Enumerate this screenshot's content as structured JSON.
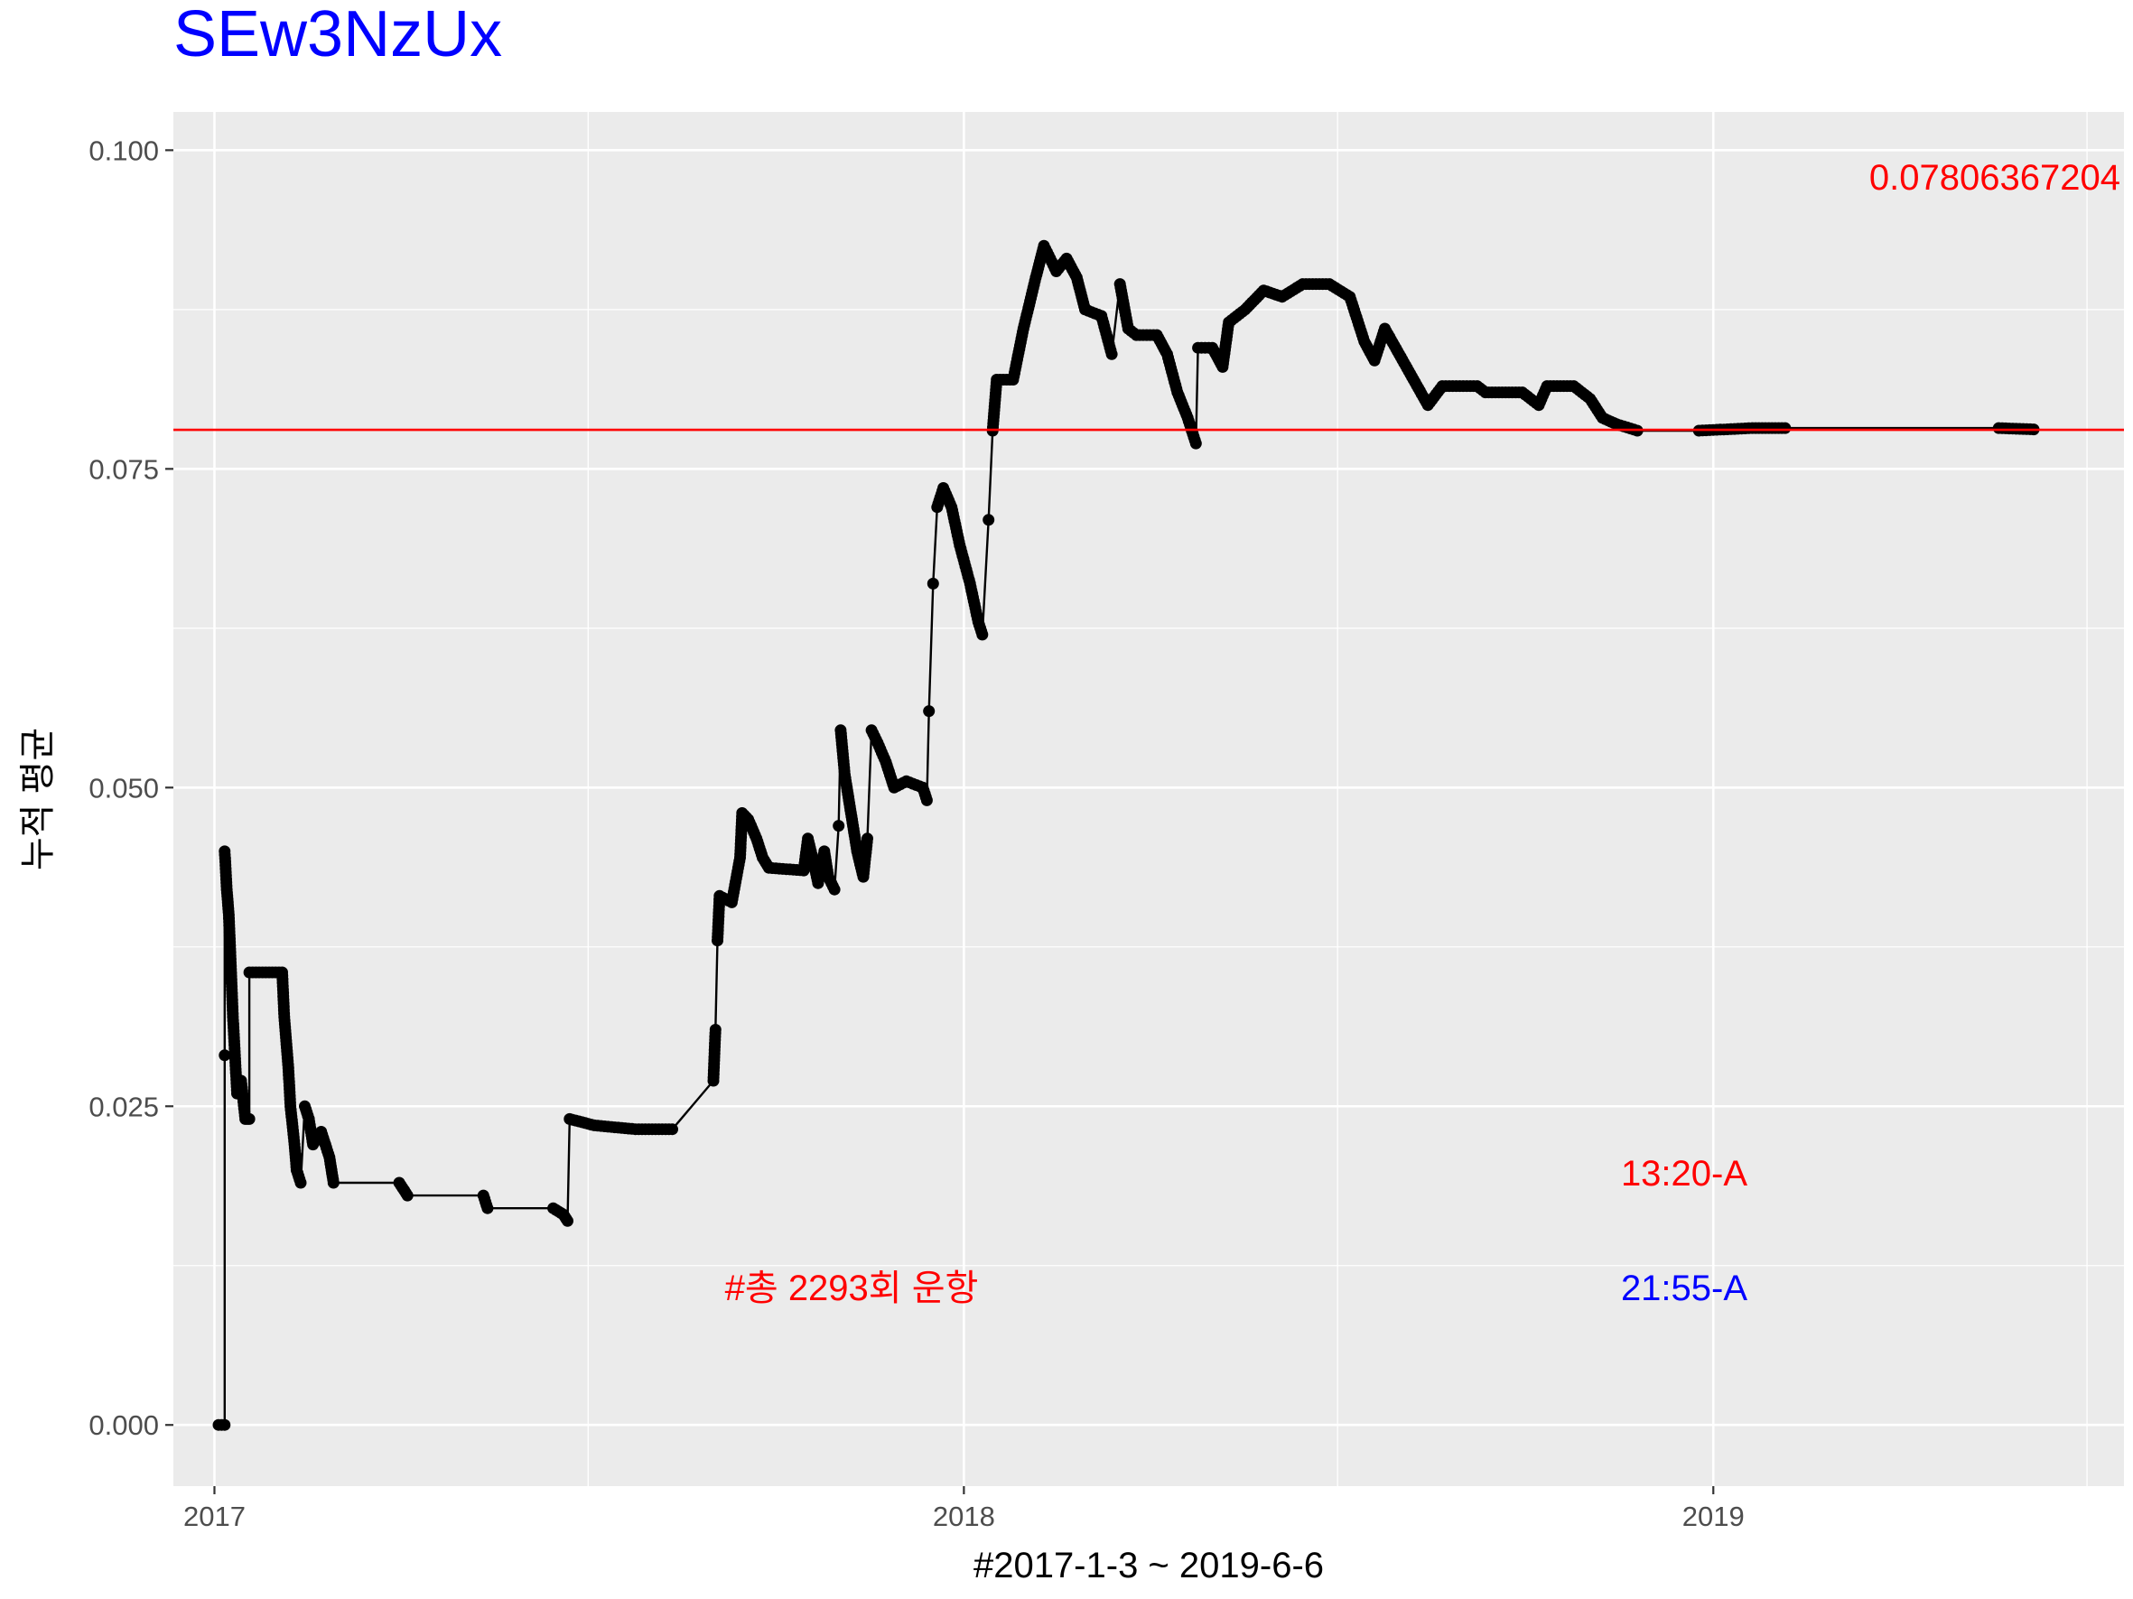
{
  "chart_data": {
    "type": "line",
    "title": "SEw3NzUx",
    "xlabel": "#2017-1-3 ~ 2019-6-6",
    "ylabel": "누적 평균",
    "x_ticks": [
      "2017",
      "2018",
      "2019"
    ],
    "y_ticks": [
      "0.000",
      "0.025",
      "0.050",
      "0.075",
      "0.100"
    ],
    "xlim": [
      "2016-12-12",
      "2019-07-20"
    ],
    "ylim": [
      -0.0048,
      0.103
    ],
    "grid": true,
    "mean_line": {
      "value": 0.07806367204,
      "label": "0.07806367204",
      "color": "#ff0000"
    },
    "annotations": [
      {
        "text": "#총 2293회 운항",
        "color": "#ff0000"
      },
      {
        "text": "13:20-A",
        "color": "#ff0000"
      },
      {
        "text": "21:55-A",
        "color": "#0000ff"
      }
    ],
    "colors": {
      "title": "#0000ff",
      "panel": "#ebebeb",
      "series": "#000000"
    },
    "series": [
      {
        "points": [
          [
            "2017-01-03",
            0.0
          ],
          [
            "2017-01-06",
            0.0
          ],
          [
            "2017-01-06",
            0.029
          ],
          [
            "2017-01-06",
            0.045
          ],
          [
            "2017-01-07",
            0.042
          ],
          [
            "2017-01-08",
            0.04
          ],
          [
            "2017-01-09",
            0.036
          ],
          [
            "2017-01-10",
            0.032
          ],
          [
            "2017-01-11",
            0.029
          ],
          [
            "2017-01-12",
            0.026
          ],
          [
            "2017-01-14",
            0.027
          ],
          [
            "2017-01-16",
            0.024
          ],
          [
            "2017-01-18",
            0.024
          ],
          [
            "2017-01-18",
            0.0355
          ],
          [
            "2017-02-03",
            0.0355
          ],
          [
            "2017-02-04",
            0.032
          ],
          [
            "2017-02-06",
            0.028
          ],
          [
            "2017-02-07",
            0.025
          ],
          [
            "2017-02-09",
            0.022
          ],
          [
            "2017-02-10",
            0.02
          ],
          [
            "2017-02-12",
            0.019
          ],
          [
            "2017-02-14",
            0.025
          ],
          [
            "2017-02-16",
            0.024
          ],
          [
            "2017-02-18",
            0.022
          ],
          [
            "2017-02-22",
            0.023
          ],
          [
            "2017-02-26",
            0.021
          ],
          [
            "2017-02-28",
            0.019
          ],
          [
            "2017-04-01",
            0.019
          ],
          [
            "2017-04-05",
            0.018
          ],
          [
            "2017-05-12",
            0.018
          ],
          [
            "2017-05-14",
            0.017
          ],
          [
            "2017-06-15",
            0.017
          ],
          [
            "2017-06-20",
            0.0165
          ],
          [
            "2017-06-22",
            0.016
          ],
          [
            "2017-06-23",
            0.024
          ],
          [
            "2017-07-05",
            0.0235
          ],
          [
            "2017-07-25",
            0.0232
          ],
          [
            "2017-08-12",
            0.0232
          ],
          [
            "2017-09-01",
            0.027
          ],
          [
            "2017-09-02",
            0.031
          ],
          [
            "2017-09-03",
            0.038
          ],
          [
            "2017-09-04",
            0.0415
          ],
          [
            "2017-09-10",
            0.041
          ],
          [
            "2017-09-14",
            0.0445
          ],
          [
            "2017-09-15",
            0.048
          ],
          [
            "2017-09-18",
            0.0475
          ],
          [
            "2017-09-22",
            0.046
          ],
          [
            "2017-09-25",
            0.0445
          ],
          [
            "2017-09-28",
            0.0437
          ],
          [
            "2017-10-15",
            0.0435
          ],
          [
            "2017-10-17",
            0.046
          ],
          [
            "2017-10-20",
            0.044
          ],
          [
            "2017-10-22",
            0.0425
          ],
          [
            "2017-10-25",
            0.045
          ],
          [
            "2017-10-27",
            0.043
          ],
          [
            "2017-10-30",
            0.042
          ],
          [
            "2017-11-01",
            0.047
          ],
          [
            "2017-11-02",
            0.0545
          ],
          [
            "2017-11-04",
            0.051
          ],
          [
            "2017-11-06",
            0.049
          ],
          [
            "2017-11-08",
            0.047
          ],
          [
            "2017-11-10",
            0.045
          ],
          [
            "2017-11-13",
            0.043
          ],
          [
            "2017-11-15",
            0.046
          ],
          [
            "2017-11-17",
            0.0545
          ],
          [
            "2017-11-20",
            0.0535
          ],
          [
            "2017-11-24",
            0.052
          ],
          [
            "2017-11-28",
            0.05
          ],
          [
            "2017-12-04",
            0.0505
          ],
          [
            "2017-12-12",
            0.05
          ],
          [
            "2017-12-14",
            0.049
          ],
          [
            "2017-12-15",
            0.056
          ],
          [
            "2017-12-17",
            0.066
          ],
          [
            "2017-12-19",
            0.072
          ],
          [
            "2017-12-22",
            0.0735
          ],
          [
            "2017-12-26",
            0.072
          ],
          [
            "2017-12-30",
            0.069
          ],
          [
            "2018-01-04",
            0.066
          ],
          [
            "2018-01-08",
            0.063
          ],
          [
            "2018-01-10",
            0.062
          ],
          [
            "2018-01-13",
            0.071
          ],
          [
            "2018-01-15",
            0.078
          ],
          [
            "2018-01-17",
            0.082
          ],
          [
            "2018-01-25",
            0.082
          ],
          [
            "2018-01-30",
            0.086
          ],
          [
            "2018-02-05",
            0.09
          ],
          [
            "2018-02-09",
            0.0925
          ],
          [
            "2018-02-15",
            0.0905
          ],
          [
            "2018-02-20",
            0.0915
          ],
          [
            "2018-02-25",
            0.09
          ],
          [
            "2018-03-01",
            0.0875
          ],
          [
            "2018-03-09",
            0.087
          ],
          [
            "2018-03-14",
            0.084
          ],
          [
            "2018-03-18",
            0.0895
          ],
          [
            "2018-03-22",
            0.086
          ],
          [
            "2018-03-26",
            0.0855
          ],
          [
            "2018-04-05",
            0.0855
          ],
          [
            "2018-04-10",
            0.084
          ],
          [
            "2018-04-15",
            0.081
          ],
          [
            "2018-04-20",
            0.079
          ],
          [
            "2018-04-24",
            0.077
          ],
          [
            "2018-04-25",
            0.0845
          ],
          [
            "2018-05-02",
            0.0845
          ],
          [
            "2018-05-07",
            0.083
          ],
          [
            "2018-05-10",
            0.0865
          ],
          [
            "2018-05-18",
            0.0875
          ],
          [
            "2018-05-27",
            0.089
          ],
          [
            "2018-06-05",
            0.0885
          ],
          [
            "2018-06-15",
            0.0895
          ],
          [
            "2018-06-28",
            0.0895
          ],
          [
            "2018-07-08",
            0.0885
          ],
          [
            "2018-07-15",
            0.085
          ],
          [
            "2018-07-20",
            0.0835
          ],
          [
            "2018-07-25",
            0.086
          ],
          [
            "2018-08-01",
            0.084
          ],
          [
            "2018-08-08",
            0.082
          ],
          [
            "2018-08-15",
            0.08
          ],
          [
            "2018-08-22",
            0.0815
          ],
          [
            "2018-09-08",
            0.0815
          ],
          [
            "2018-09-12",
            0.081
          ],
          [
            "2018-09-30",
            0.081
          ],
          [
            "2018-10-08",
            0.08
          ],
          [
            "2018-10-12",
            0.0815
          ],
          [
            "2018-10-25",
            0.0815
          ],
          [
            "2018-11-02",
            0.0805
          ],
          [
            "2018-11-08",
            0.079
          ],
          [
            "2018-11-15",
            0.0785
          ],
          [
            "2018-11-25",
            0.078
          ],
          [
            "2018-12-25",
            0.078
          ],
          [
            "2019-01-20",
            0.0782
          ],
          [
            "2019-02-05",
            0.0782
          ],
          [
            "2019-05-20",
            0.0782
          ],
          [
            "2019-06-06",
            0.0781
          ]
        ]
      }
    ]
  }
}
